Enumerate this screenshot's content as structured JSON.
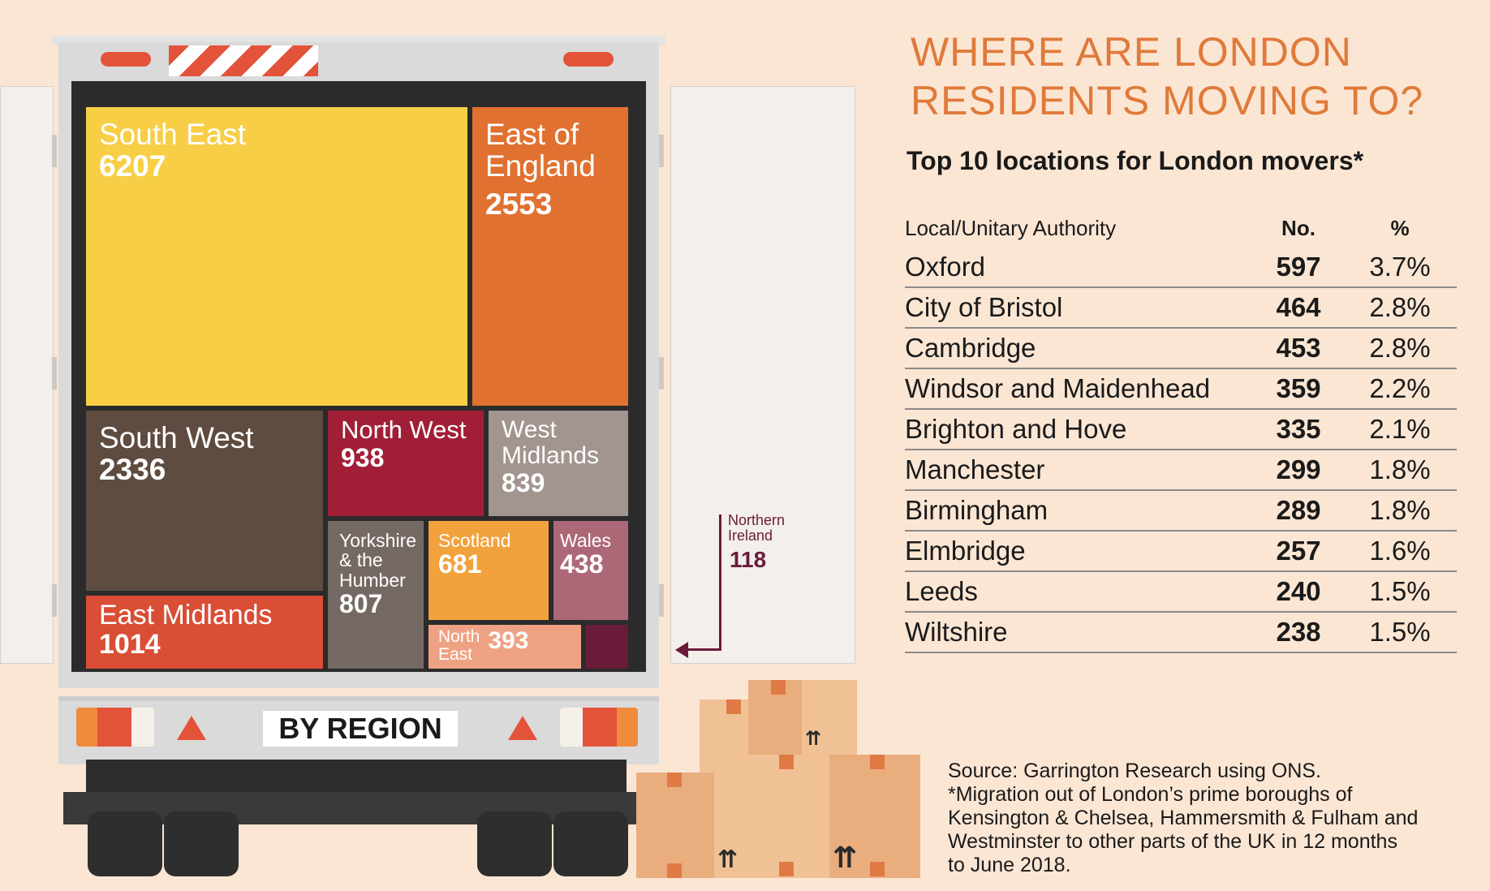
{
  "title_line1": "WHERE ARE LONDON",
  "title_line2": "RESIDENTS MOVING TO?",
  "subtitle": "Top 10 locations for London movers*",
  "treemap_label": "BY REGION",
  "chart_data": [
    {
      "type": "treemap",
      "title": "BY REGION",
      "items": [
        {
          "name": "South East",
          "value": 6207,
          "color": "#f7ce46"
        },
        {
          "name": "East of England",
          "value": 2553,
          "color": "#e07130"
        },
        {
          "name": "South West",
          "value": 2336,
          "color": "#5e4c40"
        },
        {
          "name": "East Midlands",
          "value": 1014,
          "color": "#d94e35"
        },
        {
          "name": "North West",
          "value": 938,
          "color": "#a11f36"
        },
        {
          "name": "West Midlands",
          "value": 839,
          "color": "#a2948e"
        },
        {
          "name": "Yorkshire & the Humber",
          "value": 807,
          "color": "#756a63"
        },
        {
          "name": "Scotland",
          "value": 681,
          "color": "#f2a23c"
        },
        {
          "name": "Wales",
          "value": 438,
          "color": "#ad6878"
        },
        {
          "name": "North East",
          "value": 393,
          "color": "#eea283"
        },
        {
          "name": "Northern Ireland",
          "value": 118,
          "color": "#6b1b3a"
        }
      ]
    },
    {
      "type": "table",
      "title": "Top 10 locations for London movers*",
      "columns": [
        "Local/Unitary Authority",
        "No.",
        "%"
      ],
      "rows": [
        [
          "Oxford",
          "597",
          "3.7%"
        ],
        [
          "City of Bristol",
          "464",
          "2.8%"
        ],
        [
          "Cambridge",
          "453",
          "2.8%"
        ],
        [
          "Windsor and Maidenhead",
          "359",
          "2.2%"
        ],
        [
          "Brighton and Hove",
          "335",
          "2.1%"
        ],
        [
          "Manchester",
          "299",
          "1.8%"
        ],
        [
          "Birmingham",
          "289",
          "1.8%"
        ],
        [
          "Elmbridge",
          "257",
          "1.6%"
        ],
        [
          "Leeds",
          "240",
          "1.5%"
        ],
        [
          "Wiltshire",
          "238",
          "1.5%"
        ]
      ]
    }
  ],
  "tile_labels": {
    "south_east": "South East",
    "east_of_england_1": "East of",
    "east_of_england_2": "England",
    "south_west": "South West",
    "east_midlands": "East Midlands",
    "north_west": "North West",
    "west_midlands_1": "West",
    "west_midlands_2": "Midlands",
    "yorkshire_1": "Yorkshire",
    "yorkshire_2": "& the",
    "yorkshire_3": "Humber",
    "scotland": "Scotland",
    "wales": "Wales",
    "north_east_1": "North",
    "north_east_2": "East",
    "northern_ireland_1": "Northern",
    "northern_ireland_2": "Ireland"
  },
  "source_lines": [
    "Source: Garrington Research using ONS.",
    "*Migration out of London’s prime boroughs of",
    "Kensington & Chelsea, Hammersmith & Fulham and",
    "Westminster to other parts of the UK in 12 months",
    "to June 2018."
  ]
}
